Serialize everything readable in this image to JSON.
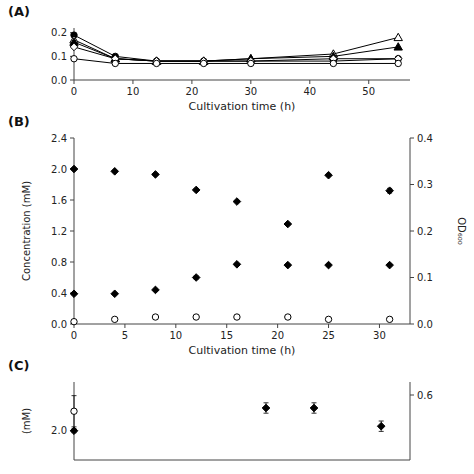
{
  "chart_data": [
    {
      "type": "line",
      "title": "(A)",
      "xlabel": "Cultivation time  (h)",
      "xlim": [
        0,
        57
      ],
      "ylim": [
        0,
        0.22
      ],
      "xticks": [
        0,
        10,
        20,
        30,
        40,
        50
      ],
      "yticks": [
        {
          "value": 0,
          "label": "0.0"
        },
        0.1,
        0.2
      ],
      "series": [
        {
          "x": [
            0,
            7,
            14,
            22,
            30,
            44,
            55
          ],
          "values": [
            0.19,
            0.1,
            0.08,
            0.08,
            0.08,
            0.08,
            0.09
          ],
          "marker": "circle",
          "color": "black"
        },
        {
          "x": [
            0,
            7,
            14,
            22,
            30,
            44,
            55
          ],
          "values": [
            0.17,
            0.09,
            0.08,
            0.08,
            0.09,
            0.11,
            0.18
          ],
          "marker": "triangle-open",
          "color": "black"
        },
        {
          "x": [
            0,
            7,
            14,
            22,
            30,
            44,
            55
          ],
          "values": [
            0.16,
            0.09,
            0.08,
            0.08,
            0.09,
            0.1,
            0.14
          ],
          "marker": "triangle",
          "color": "black"
        },
        {
          "x": [
            0,
            7,
            14,
            22,
            30,
            44,
            55
          ],
          "values": [
            0.14,
            0.09,
            0.08,
            0.08,
            0.08,
            0.09,
            0.09
          ],
          "marker": "diamond-open",
          "color": "black"
        },
        {
          "x": [
            0,
            7,
            14,
            22,
            30,
            44,
            55
          ],
          "values": [
            0.09,
            0.07,
            0.07,
            0.07,
            0.07,
            0.07,
            0.07
          ],
          "marker": "circle-open",
          "color": "black"
        }
      ]
    },
    {
      "type": "scatter",
      "title": "(B)",
      "xlabel": "Cultivation time  (h)",
      "ylabel": "Concentration  (mM)",
      "y2label": "OD₆₀₀",
      "xlim": [
        0,
        33
      ],
      "ylim": [
        0,
        2.4
      ],
      "y2lim": [
        0,
        0.4
      ],
      "xticks": [
        0,
        5,
        10,
        15,
        20,
        25,
        30
      ],
      "yticks": [
        {
          "value": 0,
          "label": "0.0"
        },
        0.4,
        0.8,
        1.2,
        1.6,
        {
          "value": 2.0,
          "label": "2.0"
        },
        2.4
      ],
      "y2ticks": [
        {
          "value": 0,
          "label": "0.0"
        },
        0.1,
        0.2,
        0.3,
        0.4
      ],
      "series": [
        {
          "x": [
            0,
            4,
            8,
            12,
            16,
            21,
            25,
            31
          ],
          "values": [
            2.0,
            1.97,
            1.93,
            1.73,
            1.58,
            1.29,
            1.92,
            1.72
          ],
          "errors": [
            0.005,
            0.01,
            0.01,
            0.01,
            0.01,
            0.01,
            0.01,
            0.03
          ],
          "marker": "diamond",
          "color": "black"
        },
        {
          "x": [
            0,
            4,
            8,
            12,
            16,
            21,
            25,
            31
          ],
          "values": [
            0.39,
            0.39,
            0.44,
            0.6,
            0.77,
            0.76,
            0.76,
            0.76
          ],
          "errors": [
            0.01,
            0.01,
            0.01,
            0.02,
            0.01,
            0.01,
            0.01,
            0.01
          ],
          "marker": "diamond",
          "color": "black"
        },
        {
          "x": [
            0,
            4,
            8,
            12,
            16,
            21,
            25,
            31
          ],
          "values": [
            0.005,
            0.01,
            0.015,
            0.015,
            0.015,
            0.015,
            0.01,
            0.01
          ],
          "marker": "circle-open",
          "color": "black",
          "axis": "y2"
        }
      ]
    },
    {
      "type": "scatter",
      "title": "(C)",
      "ylabel": "(mM)",
      "xlim": [
        0,
        35
      ],
      "ylim": [
        1.85,
        2.25
      ],
      "y2lim": [
        0.35,
        0.65
      ],
      "xticks": [],
      "tick_labels": "y",
      "yticks": [
        {
          "value": 2.0,
          "label": "2.0"
        }
      ],
      "y2ticks": [
        0.6
      ],
      "series": [
        {
          "x": [
            0
          ],
          "values": [
            2.1
          ],
          "errors": [
            0.08
          ],
          "marker": "circle-open",
          "color": "black"
        },
        {
          "x": [
            0
          ],
          "values": [
            2.0
          ],
          "errors": [
            0.01
          ],
          "marker": "diamond",
          "color": "black"
        },
        {
          "x": [
            20,
            25,
            32
          ],
          "values": [
            0.55,
            0.55,
            0.48
          ],
          "errors": [
            0.02,
            0.02,
            0.02
          ],
          "marker": "diamond",
          "color": "black",
          "axis": "y2"
        }
      ]
    }
  ]
}
